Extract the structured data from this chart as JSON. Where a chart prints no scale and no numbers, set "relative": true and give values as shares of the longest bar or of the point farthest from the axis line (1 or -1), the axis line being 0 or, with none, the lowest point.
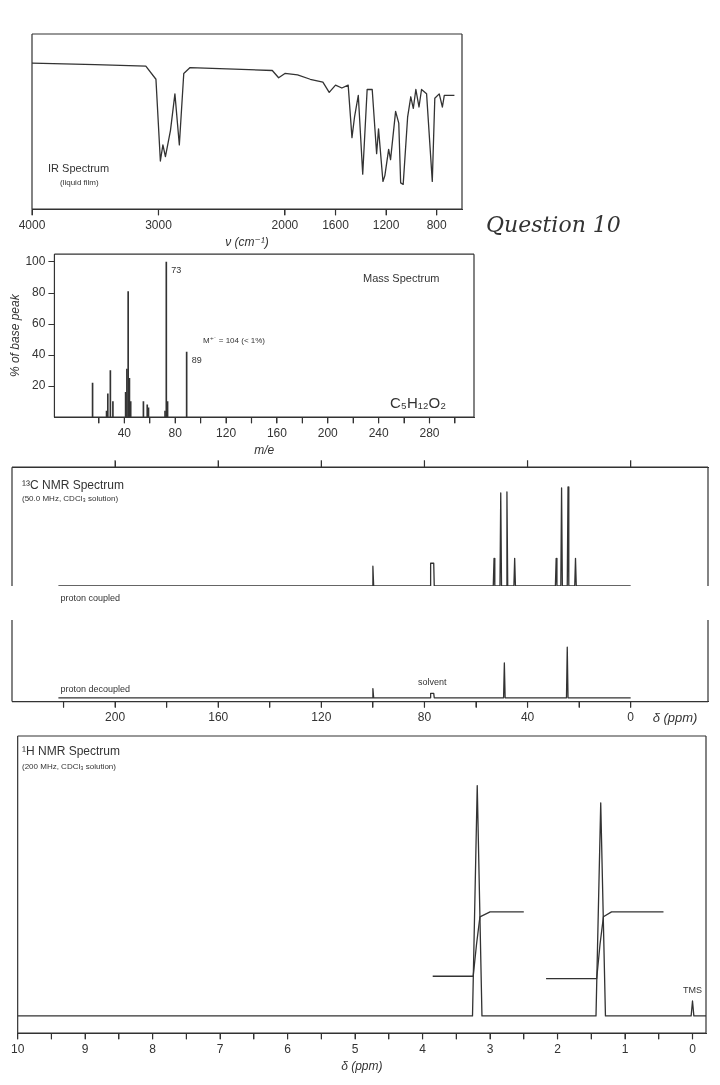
{
  "chart_data": [
    {
      "type": "line",
      "title": "IR Spectrum",
      "subtitle": "(liquid film)",
      "xlabel": "ν (cm⁻¹)",
      "relative": true,
      "xlim": [
        4000,
        600
      ],
      "xticks": [
        4000,
        3000,
        2000,
        1600,
        1200,
        800
      ],
      "annotations": [
        "Question 10"
      ],
      "series": [
        {
          "color": "#333333",
          "x": [
            4000,
            3500,
            3100,
            3020,
            2985,
            2965,
            2945,
            2905,
            2870,
            2835,
            2800,
            2750,
            2400,
            2100,
            2050,
            2000,
            1900,
            1800,
            1700,
            1650,
            1600,
            1550,
            1500,
            1470,
            1450,
            1420,
            1385,
            1350,
            1310,
            1275,
            1260,
            1225,
            1210,
            1180,
            1165,
            1125,
            1100,
            1085,
            1065,
            1030,
            1005,
            985,
            965,
            940,
            920,
            880,
            835,
            815,
            780,
            755,
            740,
            660
          ],
          "values": [
            1.0,
            0.99,
            0.98,
            0.89,
            0.33,
            0.44,
            0.36,
            0.54,
            0.79,
            0.44,
            0.93,
            0.97,
            0.96,
            0.95,
            0.9,
            0.93,
            0.92,
            0.89,
            0.87,
            0.8,
            0.85,
            0.83,
            0.85,
            0.49,
            0.63,
            0.78,
            0.24,
            0.82,
            0.82,
            0.38,
            0.55,
            0.19,
            0.23,
            0.41,
            0.34,
            0.67,
            0.59,
            0.18,
            0.17,
            0.63,
            0.77,
            0.69,
            0.82,
            0.7,
            0.82,
            0.79,
            0.19,
            0.76,
            0.79,
            0.7,
            0.78,
            0.78
          ]
        }
      ]
    },
    {
      "type": "bar",
      "title": "Mass Spectrum",
      "xlabel": "m/e",
      "ylabel": "% of base peak",
      "xlim": [
        -15,
        315
      ],
      "xticks": [
        {
          "value": 20,
          "label": null
        },
        40,
        {
          "value": 60,
          "label": null
        },
        80,
        {
          "value": 100,
          "label": null
        },
        120,
        {
          "value": 140,
          "label": null
        },
        160,
        {
          "value": 180,
          "label": null
        },
        200,
        {
          "value": 220,
          "label": null
        },
        240,
        {
          "value": 260,
          "label": null
        },
        280,
        {
          "value": 300,
          "label": null
        }
      ],
      "ylim": [
        0,
        105
      ],
      "yticks": [
        20,
        40,
        60,
        80,
        100
      ],
      "annotations": [
        "M⁺˙ = 104 (< 1%)",
        "C₅H₁₂O₂",
        {
          "text": "73",
          "x": 73,
          "y": 100
        },
        {
          "text": "89",
          "x": 89,
          "y": 42
        }
      ],
      "color": "#333333",
      "x": [
        15,
        26,
        27,
        29,
        31,
        41,
        42,
        43,
        44,
        45,
        55,
        58,
        59,
        72,
        73,
        74,
        89
      ],
      "values": [
        22,
        4,
        15,
        30,
        10,
        16,
        31,
        81,
        25,
        10,
        10,
        8,
        6,
        4,
        100,
        10,
        42
      ]
    },
    {
      "type": "line",
      "title": "¹³C NMR Spectrum",
      "subtitle": "(50.0 MHz, CDCl₃ solution)",
      "relative": true,
      "xlim": [
        240,
        -30
      ],
      "xticks": [
        200,
        160,
        120,
        80,
        40,
        0
      ],
      "tick_labels": false,
      "series": [
        {
          "name": "proton coupled",
          "color": "#333333",
          "x": [
            222,
            100.3,
            100,
            99.7,
            77.8,
            77.6,
            77,
            76.4,
            76.2,
            53.3,
            53,
            52.7,
            50.7,
            50.4,
            50.1,
            48.3,
            48,
            47.7,
            45.3,
            45,
            44.7,
            29.2,
            28.9,
            28.6,
            27.1,
            26.8,
            26.5,
            24.6,
            24.3,
            24,
            21.7,
            21.4,
            21.1,
            0
          ],
          "values": [
            0,
            0,
            0.2,
            0,
            0,
            0.23,
            0.23,
            0.23,
            0,
            0,
            0.28,
            0,
            0,
            0.94,
            0,
            0,
            0.95,
            0,
            0,
            0.28,
            0,
            0,
            0.28,
            0,
            0,
            0.99,
            0,
            0,
            1,
            0,
            0,
            0.28,
            0,
            0
          ]
        }
      ]
    },
    {
      "type": "line",
      "xlabel": "δ (ppm)",
      "relative": true,
      "xlim": [
        240,
        -30
      ],
      "xticks": [
        {
          "value": 220,
          "label": null
        },
        200,
        {
          "value": 180,
          "label": null
        },
        160,
        {
          "value": 140,
          "label": null
        },
        120,
        {
          "value": 100,
          "label": null
        },
        80,
        {
          "value": 60,
          "label": null
        },
        40,
        {
          "value": 20,
          "label": null
        },
        0
      ],
      "annotations": [
        {
          "text": "solvent",
          "x": 77,
          "y": 0.15
        }
      ],
      "series": [
        {
          "name": "proton decoupled",
          "color": "#333333",
          "x": [
            222,
            100.3,
            100,
            99.7,
            77.8,
            77.6,
            77,
            76.4,
            76.2,
            49.3,
            49,
            48.7,
            24.9,
            24.6,
            24.3,
            0
          ],
          "values": [
            0.07,
            0.07,
            0.24,
            0.07,
            0.07,
            0.15,
            0.15,
            0.15,
            0.07,
            0.07,
            0.71,
            0.07,
            0.07,
            1,
            0.07,
            0.07
          ]
        }
      ]
    },
    {
      "type": "line",
      "title": "¹H NMR Spectrum",
      "subtitle": "(200 MHz, CDCl₃ solution)",
      "xlabel": "δ (ppm)",
      "relative": true,
      "xlim": [
        10,
        -0.2
      ],
      "xticks": [
        10,
        {
          "value": 9.5,
          "label": null
        },
        9,
        {
          "value": 8.5,
          "label": null
        },
        8,
        {
          "value": 7.5,
          "label": null
        },
        7,
        {
          "value": 6.5,
          "label": null
        },
        6,
        {
          "value": 5.5,
          "label": null
        },
        5,
        {
          "value": 4.5,
          "label": null
        },
        4,
        {
          "value": 3.5,
          "label": null
        },
        3,
        {
          "value": 2.5,
          "label": null
        },
        2,
        {
          "value": 1.5,
          "label": null
        },
        1,
        {
          "value": 0.5,
          "label": null
        },
        0
      ],
      "annotations": [
        {
          "text": "TMS",
          "x": 0,
          "y": 0.13
        }
      ],
      "series": [
        {
          "color": "#333333",
          "x": [
            10,
            3.26,
            3.19,
            3.12,
            1.43,
            1.36,
            1.29,
            0.02,
            0,
            -0.02,
            -0.2
          ],
          "values": [
            0.07,
            0.07,
            1,
            0.07,
            0.07,
            0.93,
            0.07,
            0.07,
            0.13,
            0.07,
            0.07
          ]
        },
        {
          "color": "#333333",
          "x": [
            3.85,
            3.25,
            3.2,
            3.15,
            3.0,
            2.5
          ],
          "values": [
            0.23,
            0.23,
            0.36,
            0.47,
            0.49,
            0.49
          ]
        },
        {
          "color": "#333333",
          "x": [
            2.17,
            1.42,
            1.37,
            1.32,
            1.2,
            0.43
          ],
          "values": [
            0.22,
            0.22,
            0.36,
            0.47,
            0.49,
            0.49
          ]
        }
      ]
    }
  ]
}
